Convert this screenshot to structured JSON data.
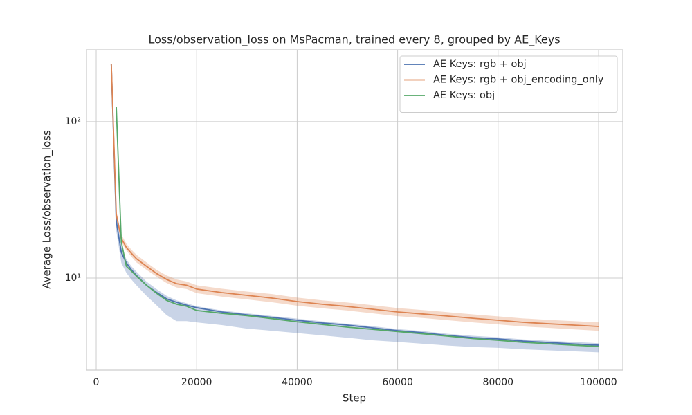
{
  "chart_data": {
    "type": "line",
    "title": "Loss/observation_loss on MsPacman, trained every 8, grouped by AE_Keys",
    "x_label": "Step",
    "y_label": "Average Loss/observation_loss",
    "log_y": true,
    "grid": true,
    "legend": "upper right",
    "xlim": [
      -1930,
      104820
    ],
    "ylim": [
      2.58,
      288
    ],
    "xticks": [
      0,
      20000,
      40000,
      60000,
      80000,
      100000
    ],
    "yticks": [
      {
        "value": 10,
        "label": "10¹"
      },
      {
        "value": 100,
        "label": "10²"
      }
    ],
    "x": [
      3000,
      4000,
      5000,
      6000,
      7000,
      8000,
      10000,
      12000,
      14000,
      16000,
      18000,
      20000,
      25000,
      30000,
      35000,
      40000,
      45000,
      50000,
      55000,
      60000,
      65000,
      70000,
      75000,
      80000,
      85000,
      90000,
      95000,
      100000
    ],
    "series": [
      {
        "name": "AE Keys: rgb + obj",
        "color": "#4c72b0",
        "values": [
          233,
          23,
          14.6,
          12.5,
          11.3,
          10.4,
          9.0,
          8.1,
          7.36,
          7.0,
          6.7,
          6.46,
          6.07,
          5.82,
          5.6,
          5.37,
          5.16,
          5.0,
          4.8,
          4.61,
          4.47,
          4.29,
          4.16,
          4.08,
          3.95,
          3.87,
          3.79,
          3.72
        ],
        "lower": [
          230,
          20,
          12.5,
          10.8,
          9.8,
          9.0,
          7.7,
          6.7,
          5.8,
          5.3,
          5.3,
          5.2,
          5.0,
          4.75,
          4.6,
          4.45,
          4.3,
          4.15,
          4.0,
          3.9,
          3.8,
          3.7,
          3.62,
          3.58,
          3.5,
          3.45,
          3.4,
          3.35
        ],
        "upper": [
          236,
          26,
          16,
          13.2,
          11.9,
          11.0,
          9.5,
          8.5,
          7.7,
          7.2,
          6.9,
          6.6,
          6.2,
          5.95,
          5.72,
          5.5,
          5.28,
          5.1,
          4.92,
          4.72,
          4.58,
          4.4,
          4.27,
          4.18,
          4.05,
          3.97,
          3.9,
          3.83
        ]
      },
      {
        "name": "AE Keys: rgb + obj_encoding_only",
        "color": "#dd8452",
        "values": [
          235,
          25.5,
          17.9,
          15.7,
          14.4,
          13.3,
          11.9,
          10.7,
          9.8,
          9.2,
          9.0,
          8.5,
          8.07,
          7.75,
          7.44,
          7.07,
          6.8,
          6.58,
          6.32,
          6.07,
          5.89,
          5.71,
          5.53,
          5.37,
          5.21,
          5.1,
          5.0,
          4.9
        ],
        "lower": [
          228,
          24,
          17.0,
          15.0,
          13.7,
          12.6,
          11.3,
          10.2,
          9.3,
          8.7,
          8.5,
          8.0,
          7.6,
          7.3,
          7.0,
          6.65,
          6.4,
          6.2,
          5.95,
          5.7,
          5.55,
          5.37,
          5.2,
          5.05,
          4.9,
          4.8,
          4.7,
          4.6
        ],
        "upper": [
          242,
          27,
          19,
          16.6,
          15.2,
          14.1,
          12.6,
          11.3,
          10.4,
          9.8,
          9.5,
          9.0,
          8.55,
          8.2,
          7.9,
          7.5,
          7.2,
          6.97,
          6.7,
          6.43,
          6.24,
          6.05,
          5.86,
          5.69,
          5.52,
          5.4,
          5.3,
          5.2
        ]
      },
      {
        "name": "AE Keys: obj",
        "color": "#55a868",
        "values": [
          null,
          124,
          17,
          11.9,
          11.1,
          10.3,
          9.0,
          8.0,
          7.2,
          6.8,
          6.6,
          6.2,
          5.95,
          5.75,
          5.5,
          5.25,
          5.05,
          4.85,
          4.7,
          4.55,
          4.4,
          4.25,
          4.1,
          4.0,
          3.88,
          3.8,
          3.72,
          3.65
        ]
      }
    ]
  }
}
